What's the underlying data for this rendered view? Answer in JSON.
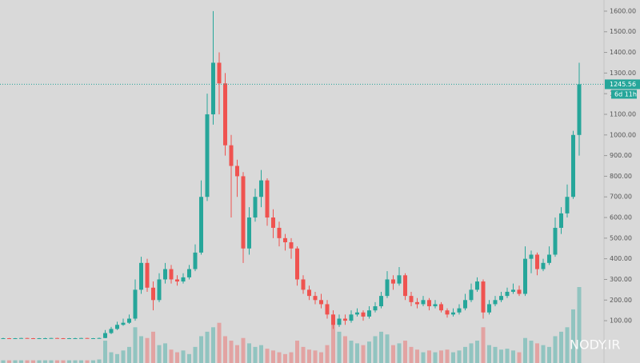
{
  "chart_data": {
    "type": "candlestick",
    "open": [
      15,
      15,
      14,
      15,
      16,
      15,
      14,
      15,
      15,
      16,
      15,
      14,
      15,
      15,
      16,
      15,
      15,
      16,
      40,
      60,
      80,
      90,
      110,
      250,
      380,
      260,
      200,
      300,
      350,
      300,
      290,
      310,
      350,
      430,
      700,
      1100,
      1350,
      1250,
      950,
      850,
      800,
      450,
      600,
      700,
      780,
      600,
      550,
      500,
      480,
      450,
      300,
      250,
      220,
      200,
      180,
      130,
      80,
      110,
      100,
      130,
      140,
      120,
      150,
      170,
      220,
      300,
      280,
      320,
      220,
      190,
      180,
      200,
      170,
      180,
      150,
      130,
      140,
      160,
      200,
      250,
      290,
      140,
      180,
      200,
      220,
      240,
      250,
      230,
      400,
      420,
      350,
      380,
      420,
      550,
      620,
      700,
      1000
    ],
    "high": [
      17,
      16,
      16,
      17,
      17,
      16,
      16,
      17,
      17,
      17,
      16,
      16,
      17,
      17,
      17,
      16,
      18,
      55,
      70,
      95,
      110,
      130,
      300,
      410,
      400,
      290,
      330,
      380,
      370,
      320,
      330,
      370,
      470,
      780,
      1200,
      1600,
      1400,
      1300,
      1000,
      880,
      820,
      650,
      740,
      830,
      790,
      640,
      580,
      520,
      500,
      460,
      320,
      270,
      240,
      230,
      200,
      150,
      130,
      130,
      150,
      160,
      150,
      170,
      190,
      240,
      340,
      320,
      360,
      330,
      240,
      210,
      220,
      210,
      200,
      190,
      160,
      160,
      180,
      230,
      280,
      310,
      300,
      200,
      220,
      240,
      260,
      280,
      270,
      460,
      440,
      430,
      400,
      460,
      600,
      650,
      760,
      1020,
      1350
    ],
    "low": [
      13,
      13,
      13,
      14,
      14,
      13,
      13,
      14,
      14,
      14,
      13,
      13,
      14,
      14,
      14,
      14,
      14,
      15,
      35,
      55,
      75,
      85,
      100,
      230,
      240,
      150,
      190,
      280,
      280,
      270,
      280,
      300,
      340,
      420,
      680,
      1050,
      1100,
      900,
      600,
      700,
      380,
      420,
      580,
      650,
      560,
      500,
      460,
      440,
      400,
      270,
      230,
      200,
      180,
      160,
      110,
      60,
      70,
      80,
      90,
      120,
      100,
      110,
      140,
      160,
      210,
      250,
      270,
      200,
      170,
      160,
      170,
      150,
      160,
      140,
      115,
      120,
      130,
      150,
      190,
      240,
      110,
      130,
      170,
      190,
      210,
      230,
      220,
      220,
      330,
      320,
      340,
      370,
      410,
      520,
      600,
      690,
      900
    ],
    "close": [
      15,
      14,
      15,
      16,
      15,
      14,
      15,
      15,
      16,
      15,
      14,
      15,
      15,
      16,
      15,
      15,
      16,
      40,
      60,
      80,
      90,
      110,
      250,
      380,
      260,
      200,
      300,
      350,
      300,
      290,
      310,
      350,
      430,
      700,
      1100,
      1350,
      1250,
      950,
      850,
      800,
      450,
      600,
      700,
      780,
      600,
      550,
      500,
      480,
      450,
      300,
      250,
      220,
      200,
      180,
      130,
      80,
      110,
      100,
      130,
      140,
      120,
      150,
      170,
      220,
      300,
      280,
      320,
      220,
      190,
      180,
      200,
      170,
      180,
      150,
      130,
      140,
      160,
      200,
      250,
      290,
      140,
      180,
      200,
      220,
      240,
      250,
      230,
      400,
      420,
      350,
      380,
      420,
      550,
      620,
      700,
      1000,
      1245.56
    ],
    "volume": [
      3,
      3,
      3,
      3,
      3,
      3,
      3,
      3,
      3,
      3,
      3,
      3,
      3,
      3,
      3,
      3,
      4,
      25,
      12,
      10,
      14,
      18,
      40,
      30,
      28,
      35,
      20,
      22,
      15,
      12,
      14,
      10,
      18,
      30,
      35,
      40,
      45,
      30,
      25,
      20,
      28,
      22,
      18,
      20,
      16,
      14,
      12,
      10,
      12,
      25,
      18,
      15,
      14,
      12,
      20,
      50,
      35,
      30,
      25,
      22,
      20,
      24,
      30,
      35,
      32,
      20,
      22,
      25,
      18,
      15,
      12,
      14,
      12,
      14,
      15,
      12,
      14,
      18,
      22,
      25,
      40,
      20,
      18,
      15,
      16,
      14,
      12,
      28,
      25,
      22,
      20,
      18,
      30,
      35,
      40,
      60,
      85
    ],
    "last_price_label": "1245.56",
    "countdown": "6d 11h",
    "watermark": "NODY.IR",
    "up_color": "#26a69a",
    "down_color": "#ef5350",
    "ylim": [
      -105,
      1654
    ],
    "yticks": [
      {
        "value": 100,
        "label": "100.00"
      },
      {
        "value": 200,
        "label": "200.00"
      },
      {
        "value": 300,
        "label": "300.00"
      },
      {
        "value": 400,
        "label": "400.00"
      },
      {
        "value": 500,
        "label": "500.00"
      },
      {
        "value": 600,
        "label": "600.00"
      },
      {
        "value": 700,
        "label": "700.00"
      },
      {
        "value": 800,
        "label": "800.00"
      },
      {
        "value": 900,
        "label": "900.00"
      },
      {
        "value": 1000,
        "label": "1000.00"
      },
      {
        "value": 1100,
        "label": "1100.00"
      },
      {
        "value": 1200,
        "label": "1200.00"
      },
      {
        "value": 1300,
        "label": "1300.00"
      },
      {
        "value": 1400,
        "label": "1400.00"
      },
      {
        "value": 1500,
        "label": "1500.00"
      },
      {
        "value": 1600,
        "label": "1600.00"
      }
    ]
  }
}
